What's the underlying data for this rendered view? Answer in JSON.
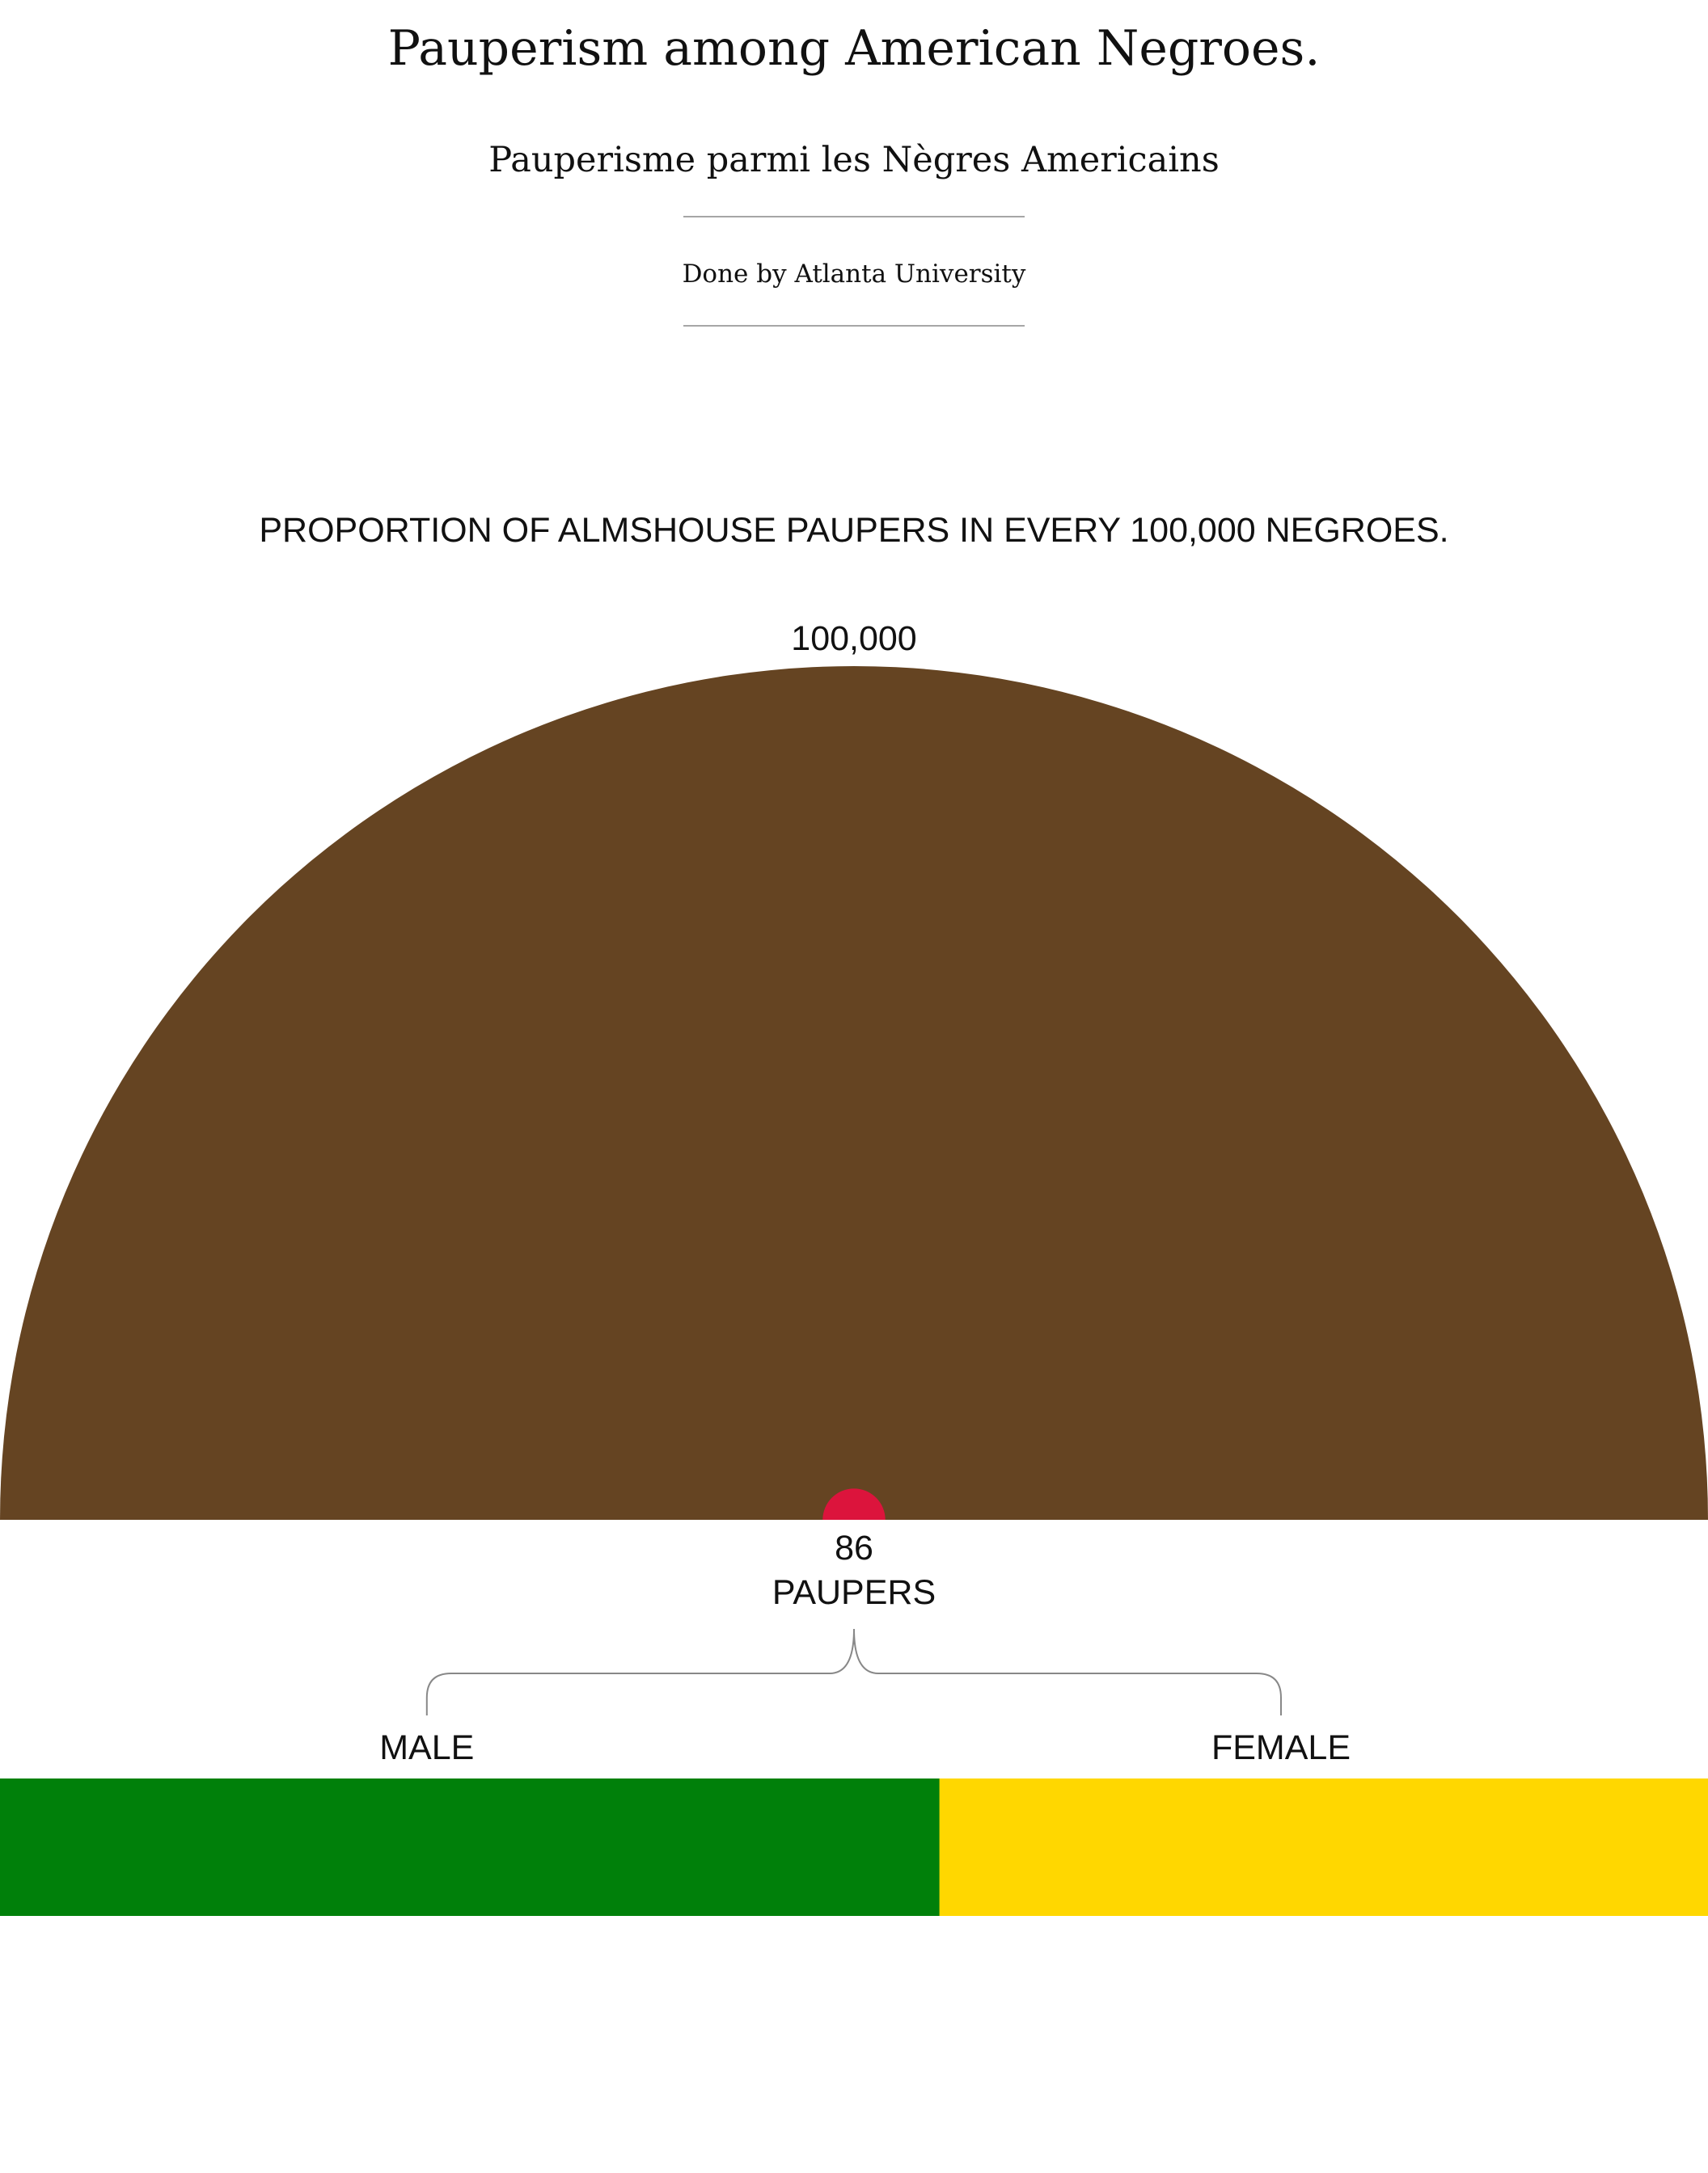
{
  "header": {
    "title": "Pauperism among American Negroes.",
    "subtitle": "Pauperisme parmi les Nègres Americains",
    "credit": "Done by Atlanta University"
  },
  "chart_data": {
    "type": "semicircle-proportion",
    "title": "PROPORTION OF ALMSHOUSE PAUPERS IN EVERY 100,000 NEGROES.",
    "total": 100000,
    "total_label": "100,000",
    "paupers": 86,
    "paupers_value_label": "86",
    "paupers_label": "PAUPERS",
    "breakdown": {
      "categories": [
        "MALE",
        "FEMALE"
      ],
      "share": [
        0.55,
        0.45
      ]
    },
    "colors": {
      "total": "#654422",
      "paupers": "#dc143c",
      "male": "#00800a",
      "female": "#ffd700",
      "brace": "#888888"
    }
  }
}
